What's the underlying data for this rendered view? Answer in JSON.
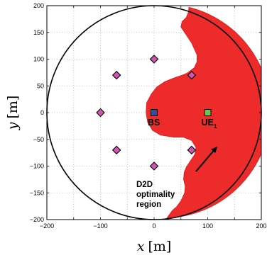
{
  "chart_data": {
    "type": "scatter",
    "title": "",
    "xlabel_var": "x",
    "xlabel_unit": "[m]",
    "ylabel_var": "y",
    "ylabel_unit": "[m]",
    "xlim": [
      -200,
      200
    ],
    "ylim": [
      -200,
      200
    ],
    "x_ticks": [
      -200,
      -150,
      -100,
      -50,
      0,
      50,
      100,
      150,
      200
    ],
    "y_ticks": [
      200,
      150,
      100,
      50,
      0,
      -50,
      -100,
      -150,
      -200
    ],
    "x_tick_labels": [
      "−200",
      "",
      "−100",
      "",
      "0",
      "",
      "100",
      "",
      "200"
    ],
    "y_tick_labels": [
      "200",
      "150",
      "100",
      "50",
      "0",
      "−50",
      "−100",
      "−150",
      "−200"
    ],
    "grid": true,
    "cell_radius": 200,
    "diamond_color": "#d055b0",
    "region_color": "#ee2b2b",
    "bs": {
      "x": 0,
      "y": 0,
      "label": "BS",
      "color": "#3c4a9e"
    },
    "ue": {
      "x": 100,
      "y": 0,
      "label": "UE",
      "sub": "1",
      "color": "#6cc44a"
    },
    "interferers": [
      {
        "x": 0,
        "y": 100
      },
      {
        "x": 70,
        "y": 70
      },
      {
        "x": 100,
        "y": 0
      },
      {
        "x": 70,
        "y": -70
      },
      {
        "x": 0,
        "y": -100
      },
      {
        "x": -70,
        "y": -70
      },
      {
        "x": -100,
        "y": 0
      },
      {
        "x": -70,
        "y": 70
      }
    ],
    "annotation": {
      "lines": [
        "D2D",
        "optimality",
        "region"
      ],
      "arrow_from": [
        78,
        -110
      ],
      "arrow_to": [
        118,
        -63
      ]
    },
    "region_boundary": [
      [
        65,
        197
      ],
      [
        64,
        188
      ],
      [
        60,
        178
      ],
      [
        52,
        170
      ],
      [
        50,
        160
      ],
      [
        57,
        150
      ],
      [
        70,
        130
      ],
      [
        80,
        108
      ],
      [
        80,
        95
      ],
      [
        75,
        84
      ],
      [
        62,
        74
      ],
      [
        52,
        70
      ],
      [
        40,
        66
      ],
      [
        20,
        58
      ],
      [
        5,
        48
      ],
      [
        -5,
        35
      ],
      [
        -14,
        18
      ],
      [
        -15,
        0
      ],
      [
        -12,
        -18
      ],
      [
        -3,
        -33
      ],
      [
        12,
        -42
      ],
      [
        37,
        -46
      ],
      [
        55,
        -46
      ],
      [
        70,
        -52
      ],
      [
        78,
        -65
      ],
      [
        76,
        -78
      ],
      [
        68,
        -90
      ],
      [
        60,
        -102
      ],
      [
        56,
        -112
      ],
      [
        55,
        -125
      ],
      [
        58,
        -138
      ],
      [
        57,
        -150
      ],
      [
        50,
        -165
      ],
      [
        42,
        -176
      ],
      [
        34,
        -183
      ],
      [
        24,
        -197
      ]
    ]
  }
}
